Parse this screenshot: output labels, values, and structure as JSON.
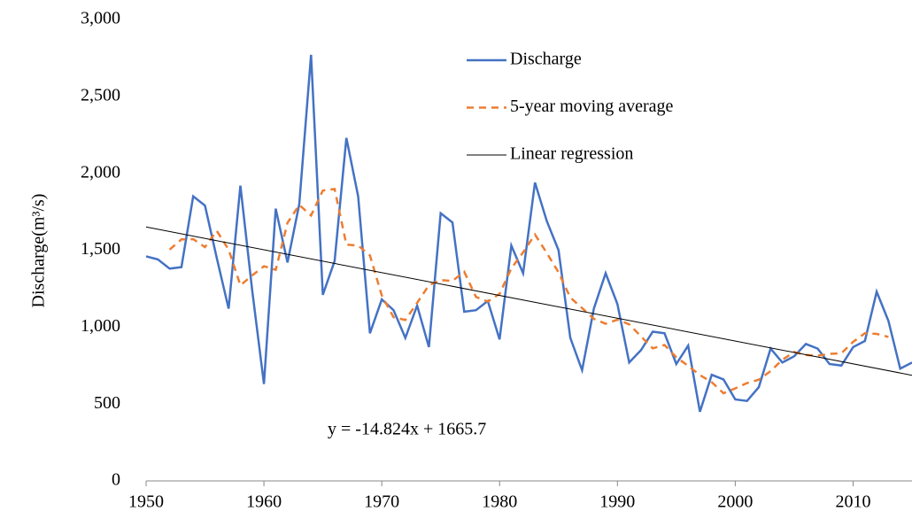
{
  "chart_data": {
    "type": "line",
    "y_axis_label": "Discharge(m³/s)",
    "annotation": "y = -14.824x + 1665.7",
    "x": [
      1950,
      1951,
      1952,
      1953,
      1954,
      1955,
      1956,
      1957,
      1958,
      1959,
      1960,
      1961,
      1962,
      1963,
      1964,
      1965,
      1966,
      1967,
      1968,
      1969,
      1970,
      1971,
      1972,
      1973,
      1974,
      1975,
      1976,
      1977,
      1978,
      1979,
      1980,
      1981,
      1982,
      1983,
      1984,
      1985,
      1986,
      1987,
      1988,
      1989,
      1990,
      1991,
      1992,
      1993,
      1994,
      1995,
      1996,
      1997,
      1998,
      1999,
      2000,
      2001,
      2002,
      2003,
      2004,
      2005,
      2006,
      2007,
      2008,
      2009,
      2010,
      2011,
      2012,
      2013,
      2014,
      2015
    ],
    "series": [
      {
        "name": "Discharge",
        "color": "#4472c4",
        "dash": false,
        "values": [
          1460,
          1440,
          1380,
          1390,
          1850,
          1790,
          1450,
          1120,
          1920,
          1240,
          630,
          1770,
          1420,
          1800,
          2770,
          1210,
          1430,
          2230,
          1850,
          960,
          1180,
          1110,
          930,
          1140,
          870,
          1740,
          1680,
          1100,
          1110,
          1170,
          920,
          1530,
          1350,
          1940,
          1690,
          1500,
          930,
          720,
          1120,
          1350,
          1150,
          770,
          850,
          970,
          960,
          760,
          880,
          450,
          690,
          660,
          530,
          520,
          610,
          860,
          770,
          810,
          890,
          860,
          760,
          750,
          870,
          910,
          1230,
          1040,
          730,
          770
        ]
      },
      {
        "name": "5-year moving average",
        "color": "#ed7d31",
        "dash": true,
        "values": [
          null,
          null,
          1504,
          1570,
          1572,
          1520,
          1626,
          1504,
          1272,
          1336,
          1396,
          1372,
          1678,
          1794,
          1726,
          1888,
          1898,
          1536,
          1530,
          1466,
          1206,
          1064,
          1046,
          1158,
          1272,
          1306,
          1300,
          1360,
          1196,
          1166,
          1216,
          1382,
          1486,
          1602,
          1482,
          1356,
          1192,
          1124,
          1054,
          1022,
          1048,
          1018,
          940,
          862,
          884,
          804,
          748,
          688,
          642,
          570,
          602,
          636,
          658,
          714,
          788,
          838,
          818,
          814,
          826,
          830,
          904,
          960,
          956,
          936,
          null,
          null
        ]
      },
      {
        "name": "Linear regression",
        "color": "#000000",
        "dash": false,
        "x": [
          1950,
          2015
        ],
        "values": [
          1651,
          687
        ]
      }
    ],
    "xlim": [
      1950,
      2015
    ],
    "xticks": [
      1950,
      1960,
      1970,
      1980,
      1990,
      2000,
      2010
    ],
    "ylim": [
      0,
      3000
    ],
    "yticks": [
      0,
      500,
      {
        "value": 1000,
        "label": "1,000"
      },
      {
        "value": 1500,
        "label": "1,500"
      },
      {
        "value": 2000,
        "label": "2,000"
      },
      {
        "value": 2500,
        "label": "2,500"
      },
      {
        "value": 3000,
        "label": "3,000"
      }
    ],
    "grid": false,
    "legend": "top"
  }
}
